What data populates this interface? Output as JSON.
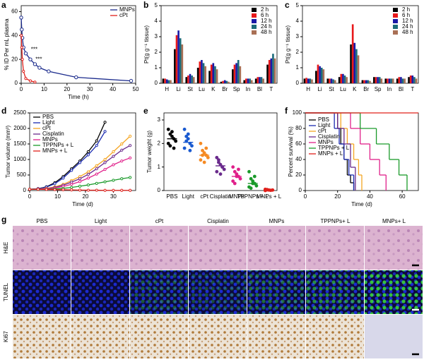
{
  "panel_labels": [
    "a",
    "b",
    "c",
    "d",
    "e",
    "f",
    "g"
  ],
  "chart_data": [
    {
      "type": "line",
      "xlabel": "Time (h)",
      "ylabel": "% ID Per mL plasma",
      "xlim": [
        0,
        50
      ],
      "xticks": [
        0,
        10,
        20,
        30,
        40,
        50
      ],
      "ylim": [
        0,
        65
      ],
      "yticks": [
        0,
        20,
        40,
        60
      ],
      "legend": "upper right",
      "annotations": [
        "***",
        "***"
      ],
      "series": [
        {
          "name": "MNPs",
          "color": "#1a2a8c",
          "x": [
            0,
            0.25,
            0.5,
            1,
            2,
            4,
            6,
            8,
            12,
            24,
            48
          ],
          "values": [
            55,
            45,
            38,
            30,
            25,
            20,
            16,
            13,
            10,
            5,
            2
          ]
        },
        {
          "name": "cPt",
          "color": "#e0201b",
          "x": [
            0,
            0.25,
            0.5,
            1,
            2,
            4,
            6
          ],
          "values": [
            40,
            30,
            20,
            10,
            4,
            2,
            1
          ]
        }
      ]
    },
    {
      "type": "bar",
      "ylabel": "Pt(g g⁻¹ tissue)",
      "ylim": [
        0,
        5
      ],
      "yticks": [
        0,
        1,
        2,
        3,
        4,
        5
      ],
      "legend": "upper right",
      "categories": [
        "H",
        "Li",
        "St",
        "Lu",
        "K",
        "Br",
        "Sp",
        "In",
        "Bl",
        "T"
      ],
      "series": [
        {
          "name": "2 h",
          "color": "#000000",
          "values": [
            0.3,
            2.2,
            0.4,
            1.0,
            0.8,
            0.1,
            0.9,
            0.2,
            0.3,
            1.2
          ]
        },
        {
          "name": "6 h",
          "color": "#e8191b",
          "values": [
            0.3,
            3.1,
            0.5,
            1.4,
            1.2,
            0.15,
            1.2,
            0.3,
            0.4,
            1.5
          ]
        },
        {
          "name": "12 h",
          "color": "#1a1aa6",
          "values": [
            0.25,
            3.4,
            0.6,
            1.5,
            1.3,
            0.2,
            1.3,
            0.3,
            0.4,
            1.6
          ]
        },
        {
          "name": "24 h",
          "color": "#1c6b7a",
          "values": [
            0.2,
            2.9,
            0.5,
            1.3,
            1.1,
            0.15,
            1.5,
            0.3,
            0.4,
            1.9
          ]
        },
        {
          "name": "48 h",
          "color": "#a97055",
          "values": [
            0.2,
            2.5,
            0.4,
            1.1,
            0.9,
            0.1,
            1.1,
            0.2,
            0.3,
            1.6
          ]
        }
      ]
    },
    {
      "type": "bar",
      "ylabel": "Pt(g g⁻¹ tissue)",
      "ylim": [
        0,
        5
      ],
      "yticks": [
        0,
        1,
        2,
        3,
        4,
        5
      ],
      "legend": "upper right",
      "categories": [
        "H",
        "Li",
        "St",
        "Lu",
        "K",
        "Br",
        "Sp",
        "In",
        "Bl",
        "T"
      ],
      "series": [
        {
          "name": "2 h",
          "color": "#000000",
          "values": [
            0.3,
            0.8,
            0.3,
            0.4,
            2.5,
            0.2,
            0.4,
            0.3,
            0.3,
            0.4
          ]
        },
        {
          "name": "6 h",
          "color": "#e8191b",
          "values": [
            0.35,
            1.2,
            0.3,
            0.6,
            3.8,
            0.2,
            0.4,
            0.3,
            0.4,
            0.5
          ]
        },
        {
          "name": "12 h",
          "color": "#1a1aa6",
          "values": [
            0.3,
            1.1,
            0.3,
            0.6,
            2.6,
            0.2,
            0.4,
            0.3,
            0.4,
            0.5
          ]
        },
        {
          "name": "24 h",
          "color": "#1c6b7a",
          "values": [
            0.3,
            1.0,
            0.25,
            0.5,
            2.2,
            0.2,
            0.4,
            0.3,
            0.3,
            0.4
          ]
        },
        {
          "name": "48 h",
          "color": "#a97055",
          "values": [
            0.25,
            0.9,
            0.2,
            0.4,
            1.8,
            0.15,
            0.3,
            0.3,
            0.3,
            0.3
          ]
        }
      ]
    },
    {
      "type": "line",
      "xlabel": "Time (d)",
      "ylabel": "Tumor volume (mm³)",
      "xlim": [
        0,
        38
      ],
      "xticks": [
        0,
        10,
        20,
        30
      ],
      "ylim": [
        0,
        2500
      ],
      "yticks": [
        0,
        500,
        1000,
        1500,
        2000,
        2500
      ],
      "legend": "upper left",
      "x": [
        0,
        3,
        6,
        9,
        12,
        15,
        18,
        21,
        24,
        27,
        30,
        33,
        36
      ],
      "series": [
        {
          "name": "PBS",
          "color": "#000000",
          "values": [
            40,
            60,
            120,
            250,
            450,
            700,
            950,
            1250,
            1600,
            2200,
            null,
            null,
            null
          ]
        },
        {
          "name": "Light",
          "color": "#1a2ab0",
          "values": [
            40,
            60,
            110,
            220,
            400,
            650,
            900,
            1150,
            1450,
            1900,
            null,
            null,
            null
          ]
        },
        {
          "name": "cPt",
          "color": "#f5a623",
          "values": [
            40,
            50,
            70,
            120,
            200,
            320,
            450,
            600,
            800,
            1000,
            1250,
            1500,
            1750
          ]
        },
        {
          "name": "Cisplatin",
          "color": "#6a2a8c",
          "values": [
            40,
            50,
            60,
            100,
            170,
            270,
            380,
            520,
            700,
            900,
            1100,
            1300,
            1450
          ]
        },
        {
          "name": "MNPs",
          "color": "#e0208a",
          "values": [
            40,
            45,
            55,
            80,
            130,
            200,
            290,
            400,
            530,
            680,
            830,
            950,
            1050
          ]
        },
        {
          "name": "TPPNPs + L",
          "color": "#1a9a2a",
          "values": [
            40,
            40,
            40,
            50,
            70,
            100,
            140,
            180,
            230,
            280,
            330,
            380,
            420
          ]
        },
        {
          "name": "MNPs + L",
          "color": "#e0201b",
          "values": [
            40,
            40,
            35,
            30,
            25,
            20,
            15,
            10,
            10,
            5,
            5,
            5,
            5
          ]
        }
      ]
    },
    {
      "type": "scatter",
      "ylabel": "Tumor weight (g)",
      "ylim": [
        0,
        3.3
      ],
      "yticks": [
        0,
        1,
        2,
        3
      ],
      "categories": [
        "PBS",
        "Light",
        "cPt",
        "Cisplatin",
        "MNPs",
        "TPPNPs + L",
        "MNPs + L"
      ],
      "colors": [
        "#000000",
        "#1a5ad0",
        "#f58a23",
        "#6a2a8c",
        "#e0208a",
        "#1a9a2a",
        "#e0201b"
      ],
      "means": [
        2.2,
        2.05,
        1.5,
        1.05,
        0.6,
        0.3,
        0.02
      ],
      "points": [
        [
          2.6,
          2.4,
          2.3,
          2.2,
          2.1,
          2.0,
          1.9,
          2.5,
          1.8
        ],
        [
          2.6,
          2.3,
          2.2,
          2.0,
          1.9,
          1.8,
          2.1,
          2.4,
          1.7
        ],
        [
          2.0,
          1.7,
          1.6,
          1.5,
          1.4,
          1.3,
          1.5,
          1.2,
          1.8
        ],
        [
          1.4,
          1.2,
          1.1,
          1.0,
          0.9,
          0.8,
          1.3,
          0.7,
          1.0
        ],
        [
          1.0,
          0.8,
          0.7,
          0.6,
          0.5,
          0.4,
          0.3,
          0.6,
          0.9
        ],
        [
          0.8,
          0.5,
          0.4,
          0.3,
          0.2,
          0.15,
          0.1,
          0.3,
          0.6
        ],
        [
          0.05,
          0.03,
          0.02,
          0.01,
          0.02,
          0.0,
          0.04
        ]
      ]
    },
    {
      "type": "line",
      "step": true,
      "xlabel": "Time (d)",
      "ylabel": "Percent survival (%)",
      "xlim": [
        0,
        70
      ],
      "xticks": [
        0,
        20,
        40,
        60
      ],
      "ylim": [
        0,
        100
      ],
      "yticks": [
        0,
        20,
        40,
        60,
        80,
        100
      ],
      "legend": "center left",
      "series": [
        {
          "name": "PBS",
          "color": "#000000",
          "x": [
            0,
            20,
            22,
            24,
            26,
            28,
            30
          ],
          "values": [
            100,
            80,
            60,
            40,
            20,
            10,
            0
          ]
        },
        {
          "name": "Light",
          "color": "#1a2ab0",
          "x": [
            0,
            18,
            21,
            24,
            27,
            30
          ],
          "values": [
            100,
            80,
            60,
            40,
            20,
            0
          ]
        },
        {
          "name": "cPt",
          "color": "#f5a623",
          "x": [
            0,
            22,
            26,
            30,
            33,
            35
          ],
          "values": [
            100,
            80,
            60,
            40,
            20,
            0
          ]
        },
        {
          "name": "Cisplatin",
          "color": "#6a2a8c",
          "x": [
            0,
            20,
            24,
            28,
            31
          ],
          "values": [
            100,
            80,
            60,
            30,
            0
          ]
        },
        {
          "name": "MNPs",
          "color": "#e0208a",
          "x": [
            0,
            28,
            34,
            40,
            46,
            50
          ],
          "values": [
            100,
            80,
            60,
            40,
            20,
            0
          ]
        },
        {
          "name": "TPPNPs + L",
          "color": "#1a9a2a",
          "x": [
            0,
            34,
            44,
            52,
            58,
            63
          ],
          "values": [
            100,
            80,
            60,
            40,
            20,
            0
          ]
        },
        {
          "name": "MNPs + L",
          "color": "#e0201b",
          "x": [
            0,
            70
          ],
          "values": [
            100,
            100
          ]
        }
      ]
    }
  ],
  "figure_g": {
    "columns": [
      "PBS",
      "Light",
      "cPt",
      "Cisplatin",
      "MNPs",
      "TPPNPs+ L",
      "MNPs+ L"
    ],
    "rows": [
      "H&E",
      "TUNEL",
      "Ki67"
    ]
  }
}
